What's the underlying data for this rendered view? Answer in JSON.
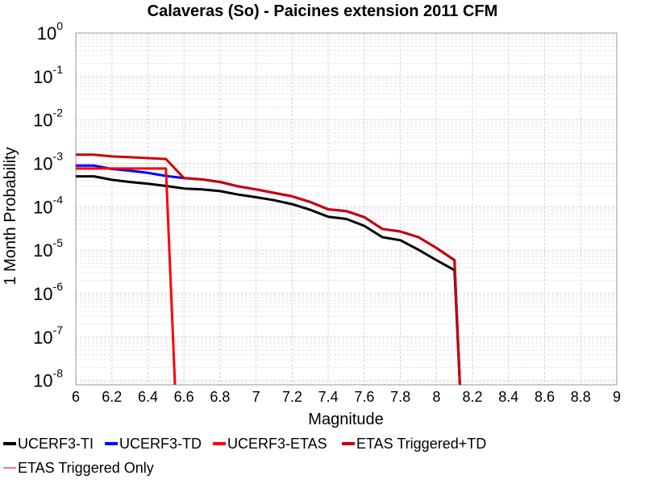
{
  "chart_data": {
    "type": "line",
    "title": "Calaveras (So) - Paicines extension 2011 CFM",
    "xlabel": "Magnitude",
    "ylabel": "1 Month Probability",
    "xlim": [
      6,
      9
    ],
    "ylim_log10": [
      -8.1,
      0
    ],
    "y_scale": "log",
    "grid": true,
    "legend_position": "bottom",
    "x_ticks": [
      "6",
      "6.2",
      "6.4",
      "6.6",
      "6.8",
      "7",
      "7.2",
      "7.4",
      "7.6",
      "7.8",
      "8",
      "8.2",
      "8.4",
      "8.6",
      "8.8",
      "9"
    ],
    "y_ticks": [
      {
        "base": "10",
        "exp": "0",
        "log10": 0
      },
      {
        "base": "10",
        "exp": "-1",
        "log10": -1
      },
      {
        "base": "10",
        "exp": "-2",
        "log10": -2
      },
      {
        "base": "10",
        "exp": "-3",
        "log10": -3
      },
      {
        "base": "10",
        "exp": "-4",
        "log10": -4
      },
      {
        "base": "10",
        "exp": "-5",
        "log10": -5
      },
      {
        "base": "10",
        "exp": "-6",
        "log10": -6
      },
      {
        "base": "10",
        "exp": "-7",
        "log10": -7
      },
      {
        "base": "10",
        "exp": "-8",
        "log10": -8
      }
    ],
    "series": [
      {
        "name": "UCERF3-TI",
        "color": "#000000",
        "x": [
          6.0,
          6.1,
          6.2,
          6.3,
          6.4,
          6.5,
          6.6,
          6.7,
          6.8,
          6.9,
          7.0,
          7.1,
          7.2,
          7.3,
          7.4,
          7.5,
          7.6,
          7.7,
          7.8,
          7.9,
          8.0,
          8.1,
          8.13
        ],
        "log10": [
          -3.3,
          -3.3,
          -3.38,
          -3.43,
          -3.47,
          -3.52,
          -3.58,
          -3.6,
          -3.64,
          -3.72,
          -3.78,
          -3.85,
          -3.94,
          -4.07,
          -4.23,
          -4.28,
          -4.44,
          -4.7,
          -4.77,
          -4.99,
          -5.23,
          -5.46,
          -8.1
        ]
      },
      {
        "name": "UCERF3-TD",
        "color": "#0000ff",
        "x": [
          6.0,
          6.1,
          6.2,
          6.3,
          6.4,
          6.5,
          6.6,
          6.7,
          6.8,
          6.9,
          7.0,
          7.1,
          7.2,
          7.3,
          7.4,
          7.5,
          7.6,
          7.7,
          7.8,
          7.9,
          8.0,
          8.1,
          8.13
        ],
        "log10": [
          -3.05,
          -3.05,
          -3.13,
          -3.17,
          -3.22,
          -3.29,
          -3.34,
          -3.37,
          -3.43,
          -3.53,
          -3.6,
          -3.68,
          -3.76,
          -3.89,
          -4.06,
          -4.1,
          -4.24,
          -4.51,
          -4.57,
          -4.7,
          -4.95,
          -5.23,
          -8.1
        ]
      },
      {
        "name": "UCERF3-ETAS",
        "color": "#ff0000",
        "x": [
          6.0,
          6.1,
          6.2,
          6.3,
          6.4,
          6.5,
          6.55
        ],
        "log10": [
          -3.12,
          -3.12,
          -3.12,
          -3.12,
          -3.12,
          -3.12,
          -8.1
        ]
      },
      {
        "name": "ETAS Triggered+TD",
        "color": "#cc0000",
        "x": [
          6.0,
          6.05,
          6.1,
          6.2,
          6.3,
          6.4,
          6.5,
          6.6,
          6.7,
          6.8,
          6.9,
          7.0,
          7.1,
          7.2,
          7.3,
          7.4,
          7.5,
          7.6,
          7.7,
          7.8,
          7.9,
          8.0,
          8.1,
          8.13
        ],
        "log10": [
          -2.8,
          -2.8,
          -2.8,
          -2.84,
          -2.86,
          -2.88,
          -2.9,
          -3.34,
          -3.37,
          -3.43,
          -3.53,
          -3.6,
          -3.68,
          -3.76,
          -3.89,
          -4.06,
          -4.1,
          -4.24,
          -4.51,
          -4.57,
          -4.7,
          -4.95,
          -5.23,
          -8.1
        ]
      },
      {
        "name": "ETAS Triggered Only",
        "color": "#ff7777",
        "x": [],
        "log10": []
      }
    ]
  }
}
